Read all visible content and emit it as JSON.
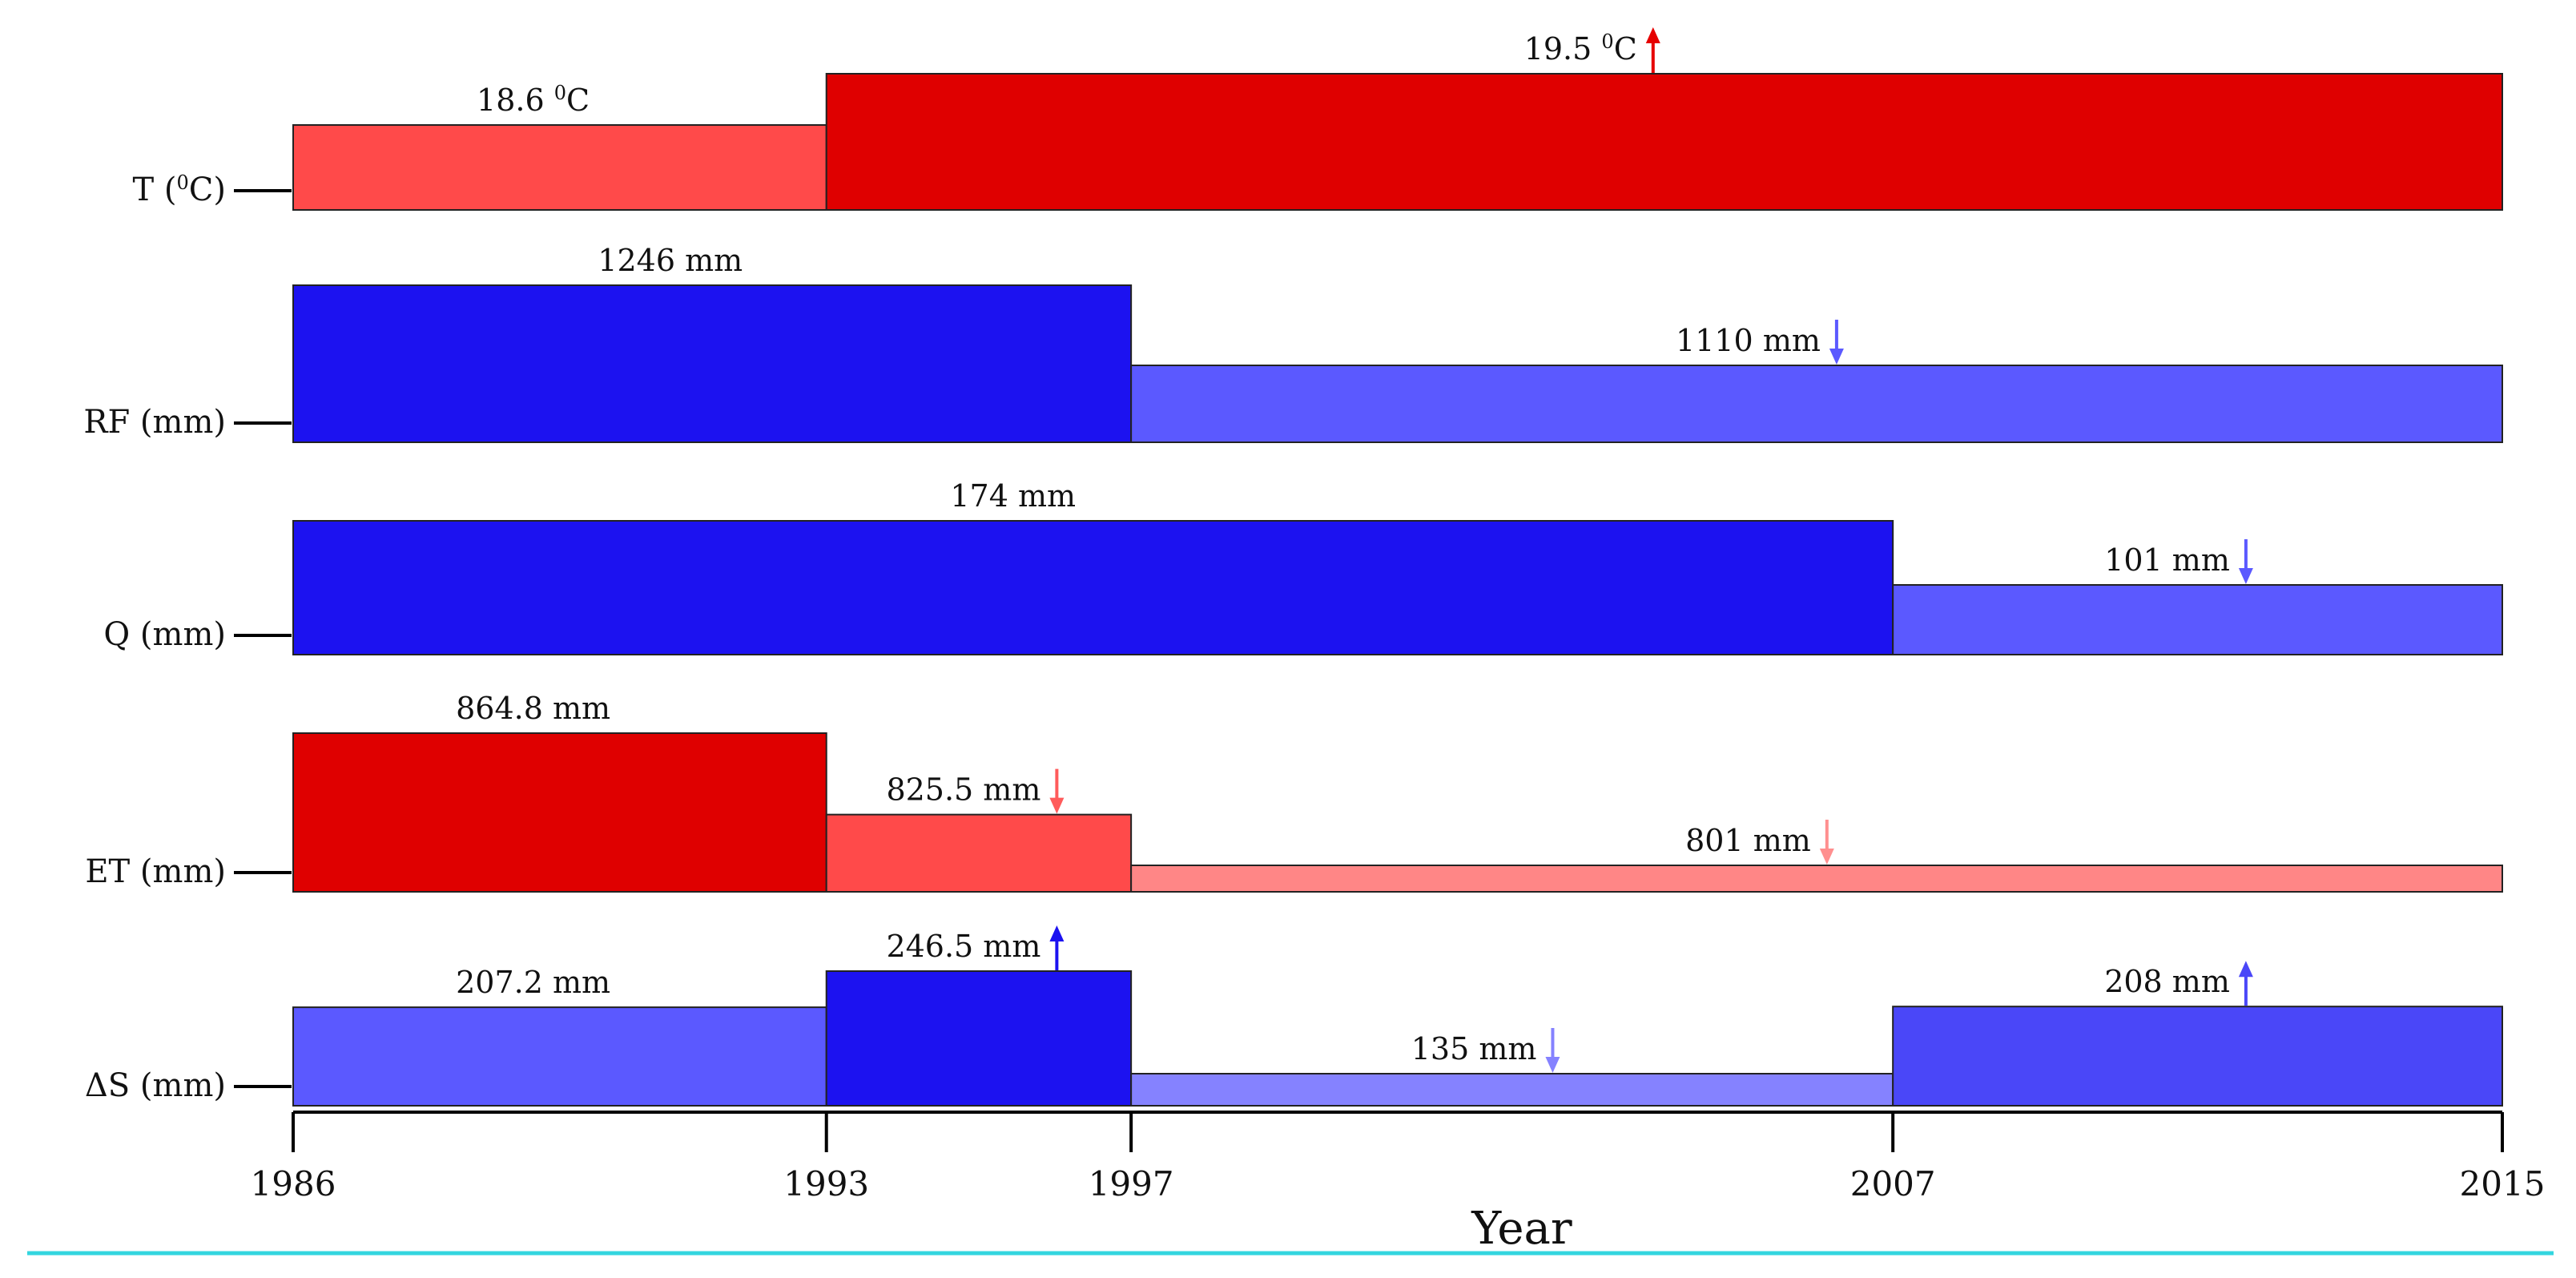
{
  "chart_data": {
    "type": "bar",
    "title": "",
    "xlabel": "Year",
    "ylabel": "",
    "x_ticks": [
      "1986",
      "1993",
      "1997",
      "2007",
      "2015"
    ],
    "xlim": [
      1986,
      2015
    ],
    "rows": [
      {
        "label_main": "T (",
        "label_sup": "0",
        "label_end": "C)",
        "segments": [
          {
            "start": 1986,
            "end": 1993,
            "value": 18.6,
            "label_main": "18.6 ",
            "label_sup": "0",
            "label_end": "C",
            "color": "#ff4a4a",
            "trend": "none"
          },
          {
            "start": 1993,
            "end": 2015,
            "value": 19.5,
            "label_main": "19.5 ",
            "label_sup": "0",
            "label_end": "C",
            "color": "#df0000",
            "trend": "up",
            "arrow_color": "#e60000"
          }
        ]
      },
      {
        "label_main": "RF (mm)",
        "label_sup": "",
        "label_end": "",
        "segments": [
          {
            "start": 1986,
            "end": 1997,
            "value": 1246,
            "label_main": "1246 mm",
            "label_sup": "",
            "label_end": "",
            "color": "#1c12f0",
            "trend": "none"
          },
          {
            "start": 1997,
            "end": 2015,
            "value": 1110,
            "label_main": "1110 mm",
            "label_sup": "",
            "label_end": "",
            "color": "#5b59ff",
            "trend": "down",
            "arrow_color": "#5b59ff"
          }
        ]
      },
      {
        "label_main": "Q (mm)",
        "label_sup": "",
        "label_end": "",
        "segments": [
          {
            "start": 1986,
            "end": 2007,
            "value": 174,
            "label_main": "174 mm",
            "label_sup": "",
            "label_end": "",
            "color": "#1c12f0",
            "trend": "none"
          },
          {
            "start": 2007,
            "end": 2015,
            "value": 101,
            "label_main": "101 mm",
            "label_sup": "",
            "label_end": "",
            "color": "#5b59ff",
            "trend": "down",
            "arrow_color": "#5b59ff"
          }
        ]
      },
      {
        "label_main": "ET (mm)",
        "label_sup": "",
        "label_end": "",
        "segments": [
          {
            "start": 1986,
            "end": 1993,
            "value": 864.8,
            "label_main": "864.8 mm",
            "label_sup": "",
            "label_end": "",
            "color": "#df0000",
            "trend": "none"
          },
          {
            "start": 1993,
            "end": 1997,
            "value": 825.5,
            "label_main": "825.5 mm",
            "label_sup": "",
            "label_end": "",
            "color": "#ff4a4a",
            "trend": "down",
            "arrow_color": "#ff5b5b"
          },
          {
            "start": 1997,
            "end": 2015,
            "value": 801,
            "label_main": "801 mm",
            "label_sup": "",
            "label_end": "",
            "color": "#ff8686",
            "trend": "down",
            "arrow_color": "#ff8f8f"
          }
        ]
      },
      {
        "label_main": "ΔS (mm)",
        "label_sup": "",
        "label_end": "",
        "segments": [
          {
            "start": 1986,
            "end": 1993,
            "value": 207.2,
            "label_main": "207.2 mm",
            "label_sup": "",
            "label_end": "",
            "color": "#5b59ff",
            "trend": "none"
          },
          {
            "start": 1993,
            "end": 1997,
            "value": 246.5,
            "label_main": "246.5 mm",
            "label_sup": "",
            "label_end": "",
            "color": "#1c12f0",
            "trend": "up",
            "arrow_color": "#1c12f0"
          },
          {
            "start": 1997,
            "end": 2007,
            "value": 135,
            "label_main": "135 mm",
            "label_sup": "",
            "label_end": "",
            "color": "#8582ff",
            "trend": "down",
            "arrow_color": "#8582ff"
          },
          {
            "start": 2007,
            "end": 2015,
            "value": 208,
            "label_main": "208 mm",
            "label_sup": "",
            "label_end": "",
            "color": "#4a47f8",
            "trend": "up",
            "arrow_color": "#4a47f8"
          }
        ]
      }
    ]
  }
}
